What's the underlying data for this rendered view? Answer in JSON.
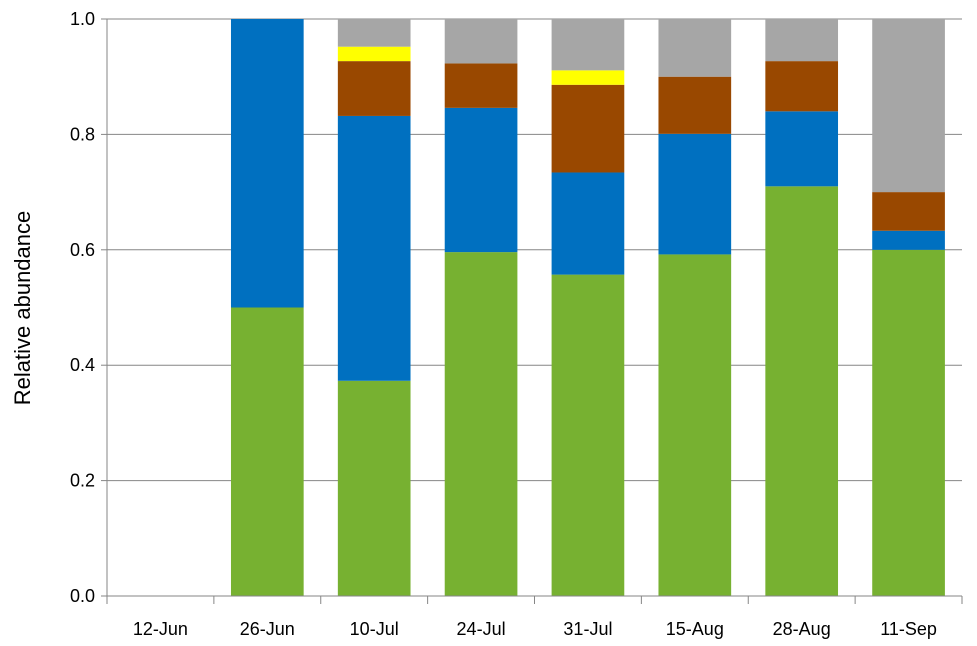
{
  "chart_data": {
    "type": "bar",
    "stacked": true,
    "title": "",
    "xlabel": "",
    "ylabel": "Relative abundance",
    "ylim": [
      0,
      1
    ],
    "yticks": [
      "0.0",
      "0.2",
      "0.4",
      "0.6",
      "0.8",
      "1.0"
    ],
    "ytick_values": [
      0,
      0.2,
      0.4,
      0.6,
      0.8,
      1.0
    ],
    "grid": "horizontal",
    "legend": "none",
    "categories": [
      "12-Jun",
      "26-Jun",
      "10-Jul",
      "24-Jul",
      "31-Jul",
      "15-Aug",
      "28-Aug",
      "11-Sep"
    ],
    "series": [
      {
        "color": "#77b131",
        "values": [
          0,
          0.5,
          0.373,
          0.596,
          0.557,
          0.592,
          0.71,
          0.6
        ]
      },
      {
        "color": "#0070c0",
        "values": [
          0,
          0.5,
          0.459,
          0.25,
          0.177,
          0.209,
          0.13,
          0.033
        ]
      },
      {
        "color": "#994800",
        "values": [
          0,
          0,
          0.095,
          0.077,
          0.152,
          0.099,
          0.087,
          0.067
        ]
      },
      {
        "color": "#ffff00",
        "values": [
          0,
          0,
          0.025,
          0,
          0.025,
          0,
          0,
          0
        ]
      },
      {
        "color": "#a6a6a6",
        "values": [
          0,
          0,
          0.048,
          0.077,
          0.089,
          0.1,
          0.073,
          0.3
        ]
      }
    ]
  }
}
